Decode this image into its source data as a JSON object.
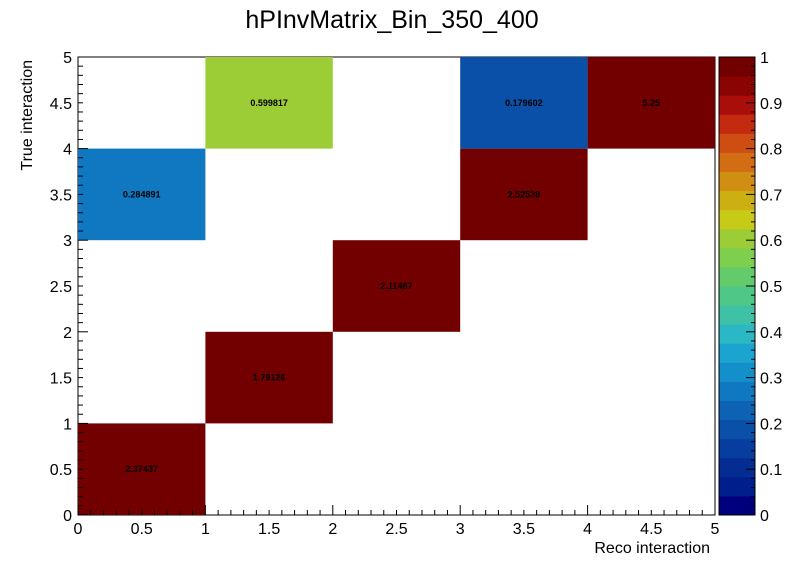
{
  "chart_data": {
    "type": "heatmap",
    "title": "hPInvMatrix_Bin_350_400",
    "xlabel": "Reco interaction",
    "ylabel": "True interaction",
    "xlim": [
      0,
      5
    ],
    "ylim": [
      0,
      5
    ],
    "zlim": [
      0,
      1
    ],
    "x_tick_labels": [
      "0",
      "0.5",
      "1",
      "1.5",
      "2",
      "2.5",
      "3",
      "3.5",
      "4",
      "4.5",
      "5"
    ],
    "y_tick_labels": [
      "0",
      "0.5",
      "1",
      "1.5",
      "2",
      "2.5",
      "3",
      "3.5",
      "4",
      "4.5",
      "5"
    ],
    "z_tick_labels": [
      "0",
      "0.1",
      "0.2",
      "0.3",
      "0.4",
      "0.5",
      "0.6",
      "0.7",
      "0.8",
      "0.9",
      "1"
    ],
    "cells": [
      {
        "x": [
          0,
          1
        ],
        "y": [
          0,
          1
        ],
        "value": 2.37437,
        "label": "2.37437"
      },
      {
        "x": [
          1,
          2
        ],
        "y": [
          1,
          2
        ],
        "value": 1.79126,
        "label": "1.79126"
      },
      {
        "x": [
          2,
          3
        ],
        "y": [
          2,
          3
        ],
        "value": 2.11487,
        "label": "2.11487"
      },
      {
        "x": [
          3,
          4
        ],
        "y": [
          3,
          4
        ],
        "value": 2.52539,
        "label": "2.52539"
      },
      {
        "x": [
          0,
          1
        ],
        "y": [
          3,
          4
        ],
        "value": 0.284891,
        "label": "0.284891"
      },
      {
        "x": [
          1,
          2
        ],
        "y": [
          4,
          5
        ],
        "value": 0.599817,
        "label": "0.599817"
      },
      {
        "x": [
          3,
          4
        ],
        "y": [
          4,
          5
        ],
        "value": 0.179602,
        "label": "0.179602"
      },
      {
        "x": [
          4,
          5
        ],
        "y": [
          4,
          5
        ],
        "value": 5.25,
        "label": "5.25"
      }
    ],
    "palette": [
      "#00007f",
      "#001e8c",
      "#042c91",
      "#073d9e",
      "#0a4fa8",
      "#0d62b3",
      "#0f78c0",
      "#1390c9",
      "#1aa4cf",
      "#2bb8c4",
      "#3ec1a4",
      "#4fc787",
      "#63cb69",
      "#7fcf4f",
      "#9ccd36",
      "#c7ca16",
      "#ccb013",
      "#d08f13",
      "#d36d14",
      "#ce4d12",
      "#c42a10",
      "#a90e0b",
      "#8b0404",
      "#720000"
    ],
    "legend": "colorbar right"
  }
}
